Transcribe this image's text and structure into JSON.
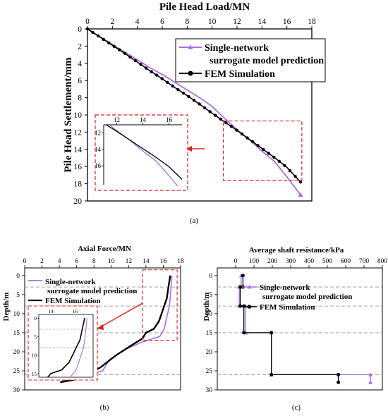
{
  "colors": {
    "purple": "#a96ee6",
    "black": "#000000",
    "red": "#e0201a",
    "grey": "#9a9a9a"
  },
  "captions": {
    "a": "(a)",
    "b": "(b)",
    "c": "(c)"
  },
  "chart_data": [
    {
      "id": "a",
      "type": "line",
      "xlabel": "Pile Head Load/MN",
      "ylabel": "Pile Head Settlement/mm",
      "xlim": [
        0,
        18
      ],
      "ylim": [
        0,
        20
      ],
      "y_inverted": true,
      "xticks": [
        0,
        2,
        4,
        6,
        8,
        10,
        12,
        14,
        16,
        18
      ],
      "yticks": [
        0,
        2,
        4,
        6,
        8,
        10,
        12,
        14,
        16,
        18,
        20
      ],
      "legend_position": "upper-right",
      "series": [
        {
          "name": "Single-network surrogate model prediction",
          "color": "purple",
          "marker": "triangle",
          "x": [
            0,
            1,
            2,
            3,
            4,
            5,
            6,
            7,
            8,
            9,
            10,
            11,
            12,
            13,
            14,
            15,
            16,
            17.1
          ],
          "y": [
            0,
            0.9,
            1.8,
            2.7,
            3.6,
            4.5,
            5.3,
            6.2,
            7.1,
            8.0,
            9.0,
            10.4,
            11.7,
            12.9,
            14.2,
            15.4,
            17.2,
            19.3
          ]
        },
        {
          "name": "FEM Simulation",
          "color": "black",
          "marker": "circle",
          "x": [
            0,
            1,
            2,
            3,
            4,
            5,
            6,
            7,
            8,
            9,
            10,
            11,
            12,
            13,
            14,
            15,
            16,
            17.1
          ],
          "y": [
            0,
            0.95,
            1.9,
            2.85,
            3.85,
            4.85,
            5.8,
            6.8,
            7.75,
            8.75,
            9.8,
            10.8,
            11.8,
            12.85,
            13.9,
            14.95,
            16.1,
            17.8
          ]
        }
      ],
      "inset": {
        "xlim": [
          11,
          17
        ],
        "ylim": [
          11,
          18.3
        ],
        "xticks": [
          12,
          14,
          16
        ],
        "yticks": [
          12,
          14,
          16
        ]
      }
    },
    {
      "id": "b",
      "type": "line",
      "xlabel": "Axial Force/MN",
      "ylabel": "Depth/m",
      "xlim": [
        0,
        18
      ],
      "ylim": [
        -2,
        30
      ],
      "y_inverted": true,
      "xticks": [
        0,
        2,
        4,
        6,
        8,
        10,
        12,
        14,
        16,
        18
      ],
      "yticks": [
        0,
        5,
        10,
        15,
        20,
        25,
        30
      ],
      "dashed_depths": [
        3,
        8,
        15,
        26
      ],
      "legend_position": "upper-left",
      "series": [
        {
          "name": "Single-network surrogate model prediction",
          "color": "purple",
          "x": [
            17.0,
            16.9,
            16.8,
            16.7,
            16.5,
            16.3,
            16.1,
            15.6,
            13.5,
            11.5,
            9.8,
            9.0,
            6.5,
            4.5,
            4.1
          ],
          "y": [
            0,
            3,
            6,
            8,
            10,
            12,
            14,
            16,
            17.5,
            19.5,
            22,
            25,
            26.5,
            27.5,
            28
          ]
        },
        {
          "name": "FEM Simulation",
          "color": "black",
          "x": [
            16.8,
            16.6,
            16.4,
            16.1,
            15.8,
            15.5,
            14.9,
            14.0,
            13.6,
            12.2,
            10.5,
            8.8,
            7.3,
            6.0,
            4.1
          ],
          "y": [
            0,
            3,
            6,
            8,
            10,
            12,
            14,
            15,
            16.5,
            18.5,
            21,
            24,
            26,
            27.2,
            28
          ]
        }
      ],
      "inset": {
        "xlim": [
          13,
          17.5
        ],
        "ylim": [
          -1,
          16
        ],
        "xticks": [
          14,
          16
        ],
        "yticks": [
          0,
          5,
          10,
          15
        ]
      }
    },
    {
      "id": "c",
      "type": "line",
      "title": "Average shaft resistance/kPa",
      "ylabel": "Depth/m",
      "xlim": [
        -100,
        800
      ],
      "ylim": [
        -2,
        30
      ],
      "y_inverted": true,
      "xticks": [
        0,
        100,
        200,
        300,
        400,
        500,
        600,
        700,
        800
      ],
      "yticks": [
        0,
        5,
        10,
        15,
        20,
        25,
        30
      ],
      "dashed_depths": [
        3,
        8,
        15,
        26
      ],
      "legend_position": "upper-right",
      "series": [
        {
          "name": "Single-network surrogate model prediction",
          "color": "purple",
          "marker": "triangle",
          "x": [
            30,
            30,
            20,
            20,
            55,
            55,
            195,
            195,
            735,
            735
          ],
          "y": [
            0,
            3,
            3,
            8,
            8,
            15,
            15,
            26,
            26,
            28
          ]
        },
        {
          "name": "FEM Simulation",
          "color": "black",
          "marker": "circle",
          "x": [
            40,
            40,
            25,
            25,
            45,
            45,
            195,
            195,
            560,
            560
          ],
          "y": [
            0,
            3,
            3,
            8,
            8,
            15,
            15,
            26,
            26,
            28
          ]
        }
      ]
    }
  ]
}
